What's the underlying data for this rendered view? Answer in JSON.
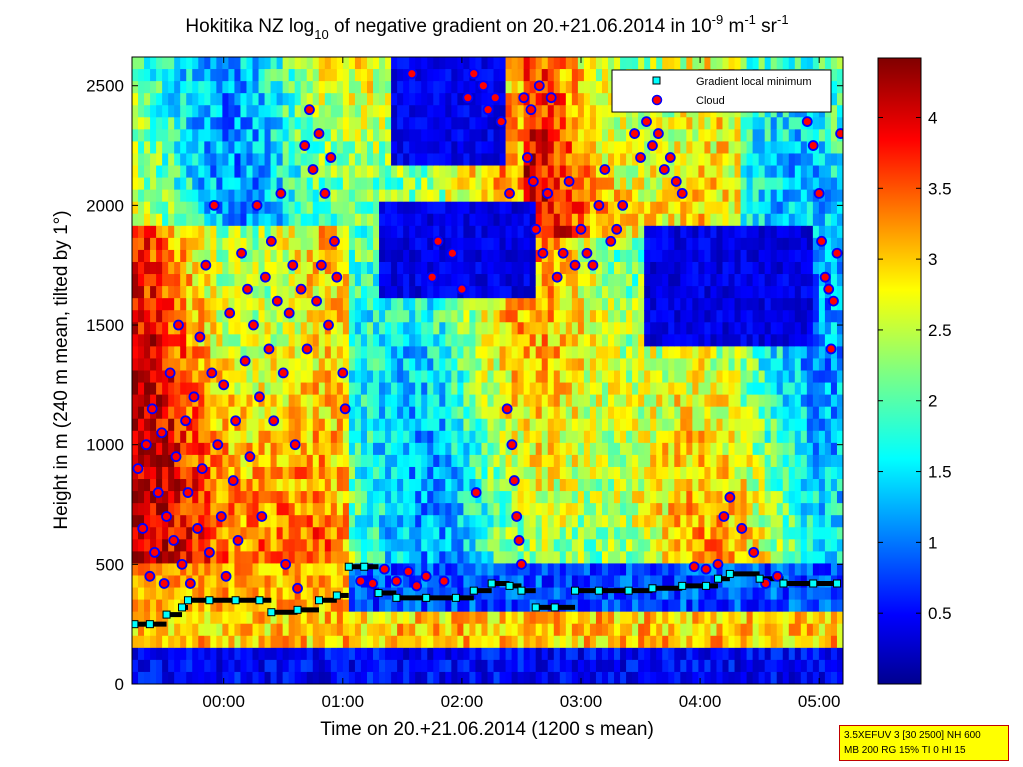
{
  "chart_data": {
    "type": "heatmap",
    "title_parts": {
      "pre": "Hokitika NZ log",
      "sub": "10",
      "mid": " of negative gradient on 20.+21.06.2014 in 10",
      "sup1": "-9",
      "unit1": " m",
      "sup2": "-1",
      "unit2": " sr",
      "sup3": "-1"
    },
    "xlabel": "Time on 20.+21.06.2014 (1200 s mean)",
    "ylabel": "Height in m (240 m mean, tilted by 1°)",
    "x_ticks": [
      "00:00",
      "01:00",
      "02:00",
      "03:00",
      "04:00",
      "05:00"
    ],
    "x_tick_hours": [
      0,
      1,
      2,
      3,
      4,
      5
    ],
    "xlim_hours": [
      -0.77,
      5.2
    ],
    "y_ticks": [
      0,
      500,
      1000,
      1500,
      2000,
      2500
    ],
    "ylim": [
      0,
      2620
    ],
    "colorbar": {
      "ticks": [
        "0.5",
        "1",
        "1.5",
        "2",
        "2.5",
        "3",
        "3.5",
        "4"
      ],
      "tick_values": [
        0.5,
        1,
        1.5,
        2,
        2.5,
        3,
        3.5,
        4
      ],
      "range": [
        0,
        4.42
      ],
      "colormap": "jet"
    },
    "legend": {
      "location": "top-right",
      "entries": [
        {
          "label": "Gradient local minimum",
          "marker": "square",
          "color": "#00ffff"
        },
        {
          "label": "Cloud",
          "marker": "circle",
          "color": "#ff0000"
        }
      ]
    },
    "series": [
      {
        "name": "Gradient local minimum",
        "marker": "square",
        "points": [
          [
            -0.75,
            250
          ],
          [
            -0.62,
            250
          ],
          [
            -0.48,
            290
          ],
          [
            -0.35,
            320
          ],
          [
            -0.3,
            350
          ],
          [
            -0.12,
            350
          ],
          [
            0.1,
            350
          ],
          [
            0.3,
            350
          ],
          [
            0.4,
            300
          ],
          [
            0.62,
            310
          ],
          [
            0.8,
            350
          ],
          [
            0.95,
            370
          ],
          [
            1.05,
            490
          ],
          [
            1.18,
            490
          ],
          [
            1.3,
            380
          ],
          [
            1.45,
            360
          ],
          [
            1.7,
            360
          ],
          [
            1.95,
            360
          ],
          [
            2.1,
            390
          ],
          [
            2.25,
            420
          ],
          [
            2.4,
            410
          ],
          [
            2.5,
            390
          ],
          [
            2.62,
            320
          ],
          [
            2.78,
            320
          ],
          [
            2.95,
            390
          ],
          [
            3.15,
            390
          ],
          [
            3.4,
            390
          ],
          [
            3.6,
            400
          ],
          [
            3.85,
            410
          ],
          [
            4.05,
            410
          ],
          [
            4.15,
            440
          ],
          [
            4.25,
            460
          ],
          [
            4.5,
            440
          ],
          [
            4.7,
            420
          ],
          [
            4.95,
            420
          ],
          [
            5.15,
            420
          ]
        ]
      },
      {
        "name": "Cloud",
        "marker": "circle",
        "points": [
          [
            -0.72,
            900
          ],
          [
            -0.68,
            650
          ],
          [
            -0.65,
            1000
          ],
          [
            -0.62,
            450
          ],
          [
            -0.6,
            1150
          ],
          [
            -0.58,
            550
          ],
          [
            -0.55,
            800
          ],
          [
            -0.52,
            1050
          ],
          [
            -0.5,
            420
          ],
          [
            -0.48,
            700
          ],
          [
            -0.45,
            1300
          ],
          [
            -0.42,
            600
          ],
          [
            -0.4,
            950
          ],
          [
            -0.38,
            1500
          ],
          [
            -0.35,
            500
          ],
          [
            -0.32,
            1100
          ],
          [
            -0.3,
            800
          ],
          [
            -0.28,
            420
          ],
          [
            -0.25,
            1200
          ],
          [
            -0.22,
            650
          ],
          [
            -0.2,
            1450
          ],
          [
            -0.18,
            900
          ],
          [
            -0.15,
            1750
          ],
          [
            -0.12,
            550
          ],
          [
            -0.1,
            1300
          ],
          [
            -0.08,
            2000
          ],
          [
            -0.05,
            1000
          ],
          [
            -0.02,
            700
          ],
          [
            0.0,
            1250
          ],
          [
            0.02,
            450
          ],
          [
            0.05,
            1550
          ],
          [
            0.08,
            850
          ],
          [
            0.1,
            1100
          ],
          [
            0.12,
            600
          ],
          [
            0.15,
            1800
          ],
          [
            0.18,
            1350
          ],
          [
            0.2,
            1650
          ],
          [
            0.22,
            950
          ],
          [
            0.25,
            1500
          ],
          [
            0.28,
            2000
          ],
          [
            0.3,
            1200
          ],
          [
            0.32,
            700
          ],
          [
            0.35,
            1700
          ],
          [
            0.38,
            1400
          ],
          [
            0.4,
            1850
          ],
          [
            0.42,
            1100
          ],
          [
            0.45,
            1600
          ],
          [
            0.48,
            2050
          ],
          [
            0.5,
            1300
          ],
          [
            0.52,
            500
          ],
          [
            0.55,
            1550
          ],
          [
            0.58,
            1750
          ],
          [
            0.6,
            1000
          ],
          [
            0.62,
            400
          ],
          [
            0.65,
            1650
          ],
          [
            0.68,
            2250
          ],
          [
            0.7,
            1400
          ],
          [
            0.72,
            2400
          ],
          [
            0.75,
            2150
          ],
          [
            0.78,
            1600
          ],
          [
            0.8,
            2300
          ],
          [
            0.82,
            1750
          ],
          [
            0.85,
            2050
          ],
          [
            0.88,
            1500
          ],
          [
            0.9,
            2200
          ],
          [
            0.93,
            1850
          ],
          [
            0.95,
            1700
          ],
          [
            1.0,
            1300
          ],
          [
            1.02,
            1150
          ],
          [
            1.15,
            430
          ],
          [
            1.25,
            420
          ],
          [
            1.35,
            480
          ],
          [
            1.45,
            430
          ],
          [
            1.55,
            470
          ],
          [
            1.58,
            2550
          ],
          [
            1.62,
            410
          ],
          [
            1.7,
            450
          ],
          [
            1.75,
            1700
          ],
          [
            1.8,
            1850
          ],
          [
            1.85,
            430
          ],
          [
            1.92,
            1800
          ],
          [
            2.0,
            1650
          ],
          [
            2.05,
            2450
          ],
          [
            2.1,
            2550
          ],
          [
            2.12,
            800
          ],
          [
            2.18,
            2500
          ],
          [
            2.22,
            2400
          ],
          [
            2.28,
            2450
          ],
          [
            2.33,
            2350
          ],
          [
            2.38,
            1150
          ],
          [
            2.4,
            2050
          ],
          [
            2.42,
            1000
          ],
          [
            2.44,
            850
          ],
          [
            2.46,
            700
          ],
          [
            2.48,
            600
          ],
          [
            2.5,
            500
          ],
          [
            2.52,
            2450
          ],
          [
            2.55,
            2200
          ],
          [
            2.58,
            2400
          ],
          [
            2.6,
            2100
          ],
          [
            2.62,
            1900
          ],
          [
            2.65,
            2500
          ],
          [
            2.68,
            1800
          ],
          [
            2.72,
            2050
          ],
          [
            2.75,
            2450
          ],
          [
            2.8,
            1700
          ],
          [
            2.85,
            1800
          ],
          [
            2.9,
            2100
          ],
          [
            2.95,
            1750
          ],
          [
            3.0,
            1900
          ],
          [
            3.05,
            1800
          ],
          [
            3.1,
            1750
          ],
          [
            3.15,
            2000
          ],
          [
            3.2,
            2150
          ],
          [
            3.25,
            1850
          ],
          [
            3.3,
            1900
          ],
          [
            3.35,
            2000
          ],
          [
            3.4,
            2450
          ],
          [
            3.45,
            2300
          ],
          [
            3.5,
            2200
          ],
          [
            3.55,
            2350
          ],
          [
            3.6,
            2250
          ],
          [
            3.65,
            2300
          ],
          [
            3.7,
            2150
          ],
          [
            3.75,
            2200
          ],
          [
            3.8,
            2100
          ],
          [
            3.85,
            2050
          ],
          [
            3.95,
            490
          ],
          [
            4.05,
            480
          ],
          [
            4.15,
            500
          ],
          [
            4.2,
            700
          ],
          [
            4.25,
            780
          ],
          [
            4.35,
            650
          ],
          [
            4.45,
            550
          ],
          [
            4.55,
            420
          ],
          [
            4.65,
            450
          ],
          [
            4.9,
            2350
          ],
          [
            4.95,
            2250
          ],
          [
            5.0,
            2050
          ],
          [
            5.02,
            1850
          ],
          [
            5.05,
            1700
          ],
          [
            5.08,
            1650
          ],
          [
            5.1,
            1400
          ],
          [
            5.12,
            1600
          ],
          [
            5.15,
            1800
          ],
          [
            5.18,
            2300
          ]
        ]
      }
    ],
    "grid": false
  },
  "info_box": {
    "line1": "3.5XEFUV 3 [30 2500] NH 600",
    "line2": "MB 200 RG 15% TI 0 HI 15"
  }
}
